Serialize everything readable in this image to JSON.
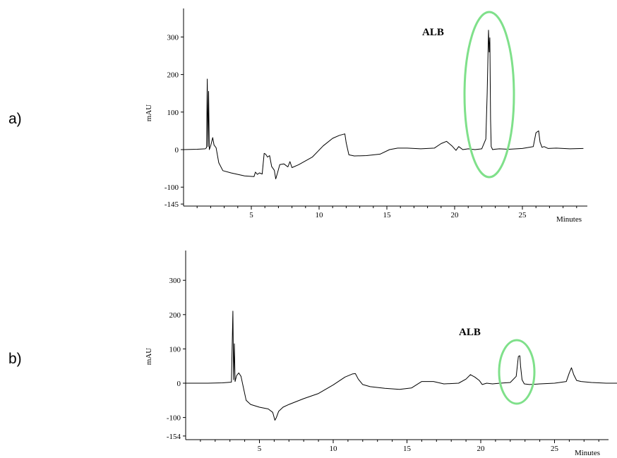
{
  "panels": [
    {
      "label": "a)"
    },
    {
      "label": "b)"
    }
  ],
  "colors": {
    "trace": "#000000",
    "highlight": "#7fe08a"
  },
  "chart_data": [
    {
      "type": "line",
      "panel": "a)",
      "title": "",
      "ylabel": "mAU",
      "xlabel": "Minutes",
      "xlim": [
        0,
        29.5
      ],
      "ylim": [
        -145,
        370
      ],
      "y_ticks": [
        {
          "value": 300,
          "label": "300"
        },
        {
          "value": 200,
          "label": "200"
        },
        {
          "value": 100,
          "label": "100"
        },
        {
          "value": 0,
          "label": "0"
        },
        {
          "value": -100,
          "label": "-100"
        },
        {
          "value": -145,
          "label": "-145"
        }
      ],
      "x_ticks": [
        {
          "value": 5,
          "label": "5"
        },
        {
          "value": 10,
          "label": "10"
        },
        {
          "value": 15,
          "label": "15"
        },
        {
          "value": 20,
          "label": "20"
        },
        {
          "value": 25,
          "label": "25"
        }
      ],
      "annotation": {
        "text": "ALB",
        "x": 22.6,
        "y": 313,
        "highlight": "ellipse around peak"
      },
      "series": [
        {
          "x": [
            0,
            1.0,
            1.6,
            1.7,
            1.75,
            1.8,
            1.85,
            1.9,
            2.0,
            2.15,
            2.25,
            2.4,
            2.6,
            2.9,
            3.5,
            4.5,
            5.2,
            5.3,
            5.45,
            5.6,
            5.8,
            5.95,
            6.05,
            6.2,
            6.35,
            6.5,
            6.7,
            6.8,
            6.95,
            7.1,
            7.4,
            7.7,
            7.85,
            8.0,
            8.5,
            9.5,
            10.3,
            11.0,
            11.5,
            11.9,
            12.0,
            12.2,
            12.6,
            13.5,
            14.5,
            15.2,
            15.8,
            16.5,
            17.5,
            18.5,
            19.0,
            19.4,
            19.8,
            20.1,
            20.3,
            20.6,
            21.0,
            21.5,
            22.0,
            22.3,
            22.4,
            22.5,
            22.55,
            22.6,
            22.65,
            22.7,
            22.8,
            22.95,
            23.3,
            24.0,
            25.0,
            25.8,
            26.0,
            26.2,
            26.3,
            26.45,
            26.6,
            26.9,
            27.5,
            28.5,
            29.5
          ],
          "y": [
            0,
            1,
            2,
            5,
            188,
            8,
            155,
            0,
            10,
            32,
            12,
            5,
            -35,
            -56,
            -62,
            -70,
            -72,
            -60,
            -66,
            -62,
            -65,
            -10,
            -12,
            -20,
            -16,
            -45,
            -55,
            -78,
            -60,
            -40,
            -38,
            -46,
            -32,
            -48,
            -40,
            -20,
            10,
            30,
            38,
            42,
            18,
            -14,
            -17,
            -16,
            -12,
            0,
            4,
            4,
            2,
            4,
            16,
            22,
            10,
            -2,
            8,
            0,
            2,
            0,
            2,
            28,
            150,
            318,
            260,
            298,
            80,
            8,
            0,
            1,
            2,
            1,
            3,
            8,
            45,
            50,
            20,
            6,
            8,
            3,
            4,
            2,
            3
          ]
        }
      ]
    },
    {
      "type": "line",
      "panel": "b)",
      "title": "",
      "ylabel": "mAU",
      "xlabel": "Minutes",
      "xlim": [
        0,
        29.5
      ],
      "ylim": [
        -154,
        390
      ],
      "y_ticks": [
        {
          "value": 300,
          "label": "300"
        },
        {
          "value": 200,
          "label": "200"
        },
        {
          "value": 100,
          "label": "100"
        },
        {
          "value": 0,
          "label": "0"
        },
        {
          "value": -100,
          "label": "-100"
        },
        {
          "value": -154,
          "label": "-154"
        }
      ],
      "x_ticks": [
        {
          "value": 5,
          "label": "5"
        },
        {
          "value": 10,
          "label": "10"
        },
        {
          "value": 15,
          "label": "15"
        },
        {
          "value": 20,
          "label": "20"
        },
        {
          "value": 25,
          "label": "25"
        }
      ],
      "annotation": {
        "text": "ALB",
        "x": 22.6,
        "y": 80,
        "highlight": "ellipse around peak"
      },
      "series": [
        {
          "x": [
            0,
            1.5,
            2.5,
            3.1,
            3.2,
            3.25,
            3.3,
            3.35,
            3.45,
            3.6,
            3.75,
            3.9,
            4.1,
            4.4,
            5.0,
            5.6,
            5.9,
            6.05,
            6.15,
            6.3,
            6.6,
            7.0,
            8.0,
            9.0,
            10.0,
            10.8,
            11.3,
            11.5,
            11.7,
            12.0,
            12.5,
            13.5,
            14.5,
            15.3,
            16.0,
            16.8,
            17.5,
            18.5,
            19.0,
            19.3,
            19.6,
            19.9,
            20.1,
            20.4,
            20.8,
            21.3,
            22.0,
            22.4,
            22.55,
            22.65,
            22.7,
            22.8,
            22.95,
            23.3,
            24.0,
            25.0,
            25.8,
            26.0,
            26.15,
            26.3,
            26.5,
            26.8,
            27.5,
            28.5,
            29.5
          ],
          "y": [
            0,
            0,
            1,
            3,
            210,
            10,
            115,
            5,
            22,
            30,
            20,
            -10,
            -50,
            -62,
            -70,
            -75,
            -85,
            -108,
            -100,
            -82,
            -70,
            -62,
            -45,
            -30,
            -5,
            18,
            27,
            28,
            12,
            -4,
            -10,
            -15,
            -18,
            -14,
            5,
            5,
            -2,
            0,
            12,
            25,
            18,
            8,
            -4,
            0,
            -2,
            0,
            2,
            20,
            78,
            80,
            50,
            10,
            -2,
            -4,
            -2,
            0,
            5,
            30,
            45,
            25,
            8,
            5,
            2,
            0,
            0
          ]
        }
      ]
    }
  ]
}
